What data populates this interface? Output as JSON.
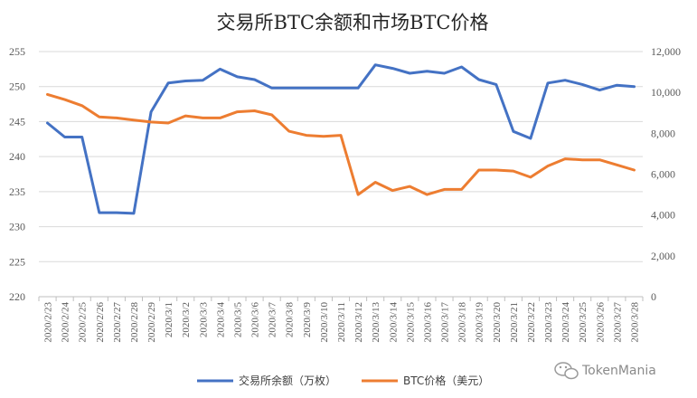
{
  "chart_data": {
    "type": "line",
    "title": "交易所BTC余额和市场BTC价格",
    "categories": [
      "2020/2/23",
      "2020/2/24",
      "2020/2/25",
      "2020/2/26",
      "2020/2/27",
      "2020/2/28",
      "2020/2/29",
      "2020/3/1",
      "2020/3/2",
      "2020/3/3",
      "2020/3/4",
      "2020/3/5",
      "2020/3/6",
      "2020/3/7",
      "2020/3/8",
      "2020/3/9",
      "2020/3/10",
      "2020/3/11",
      "2020/3/12",
      "2020/3/13",
      "2020/3/14",
      "2020/3/15",
      "2020/3/16",
      "2020/3/17",
      "2020/3/18",
      "2020/3/19",
      "2020/3/20",
      "2020/3/21",
      "2020/3/22",
      "2020/3/23",
      "2020/3/24",
      "2020/3/25",
      "2020/3/26",
      "2020/3/27",
      "2020/3/28"
    ],
    "y_left": {
      "ylim": [
        220,
        255
      ],
      "ticks": [
        "220",
        "225",
        "230",
        "235",
        "240",
        "245",
        "250",
        "255"
      ]
    },
    "y_right": {
      "ylim": [
        0,
        12000
      ],
      "ticks": [
        "0",
        "2,000",
        "4,000",
        "6,000",
        "8,000",
        "10,000",
        "12,000"
      ]
    },
    "series": [
      {
        "name": "交易所余额（万枚）",
        "axis": "left",
        "color": "#4472C4",
        "values": [
          244.8,
          242.8,
          242.8,
          232.0,
          232.0,
          231.9,
          246.4,
          250.5,
          250.8,
          250.9,
          252.5,
          251.4,
          251.0,
          249.8,
          249.8,
          249.8,
          249.8,
          249.8,
          249.8,
          253.1,
          252.6,
          251.9,
          252.2,
          251.9,
          252.8,
          251.0,
          250.3,
          243.6,
          242.6,
          250.5,
          250.9,
          250.3,
          249.5,
          250.2,
          250.0
        ]
      },
      {
        "name": "BTC价格（美元）",
        "axis": "right",
        "color": "#ED7D31",
        "values": [
          9900,
          9650,
          9350,
          8800,
          8750,
          8650,
          8550,
          8500,
          8850,
          8750,
          8750,
          9050,
          9100,
          8900,
          8100,
          7900,
          7850,
          7900,
          5000,
          5600,
          5200,
          5400,
          5000,
          5250,
          5250,
          6200,
          6200,
          6150,
          5850,
          6400,
          6750,
          6700,
          6700,
          6450,
          6200
        ]
      }
    ],
    "legend_position": "bottom",
    "grid": "horizontal"
  },
  "watermark": {
    "text": "TokenMania",
    "icon": "wechat-icon"
  }
}
